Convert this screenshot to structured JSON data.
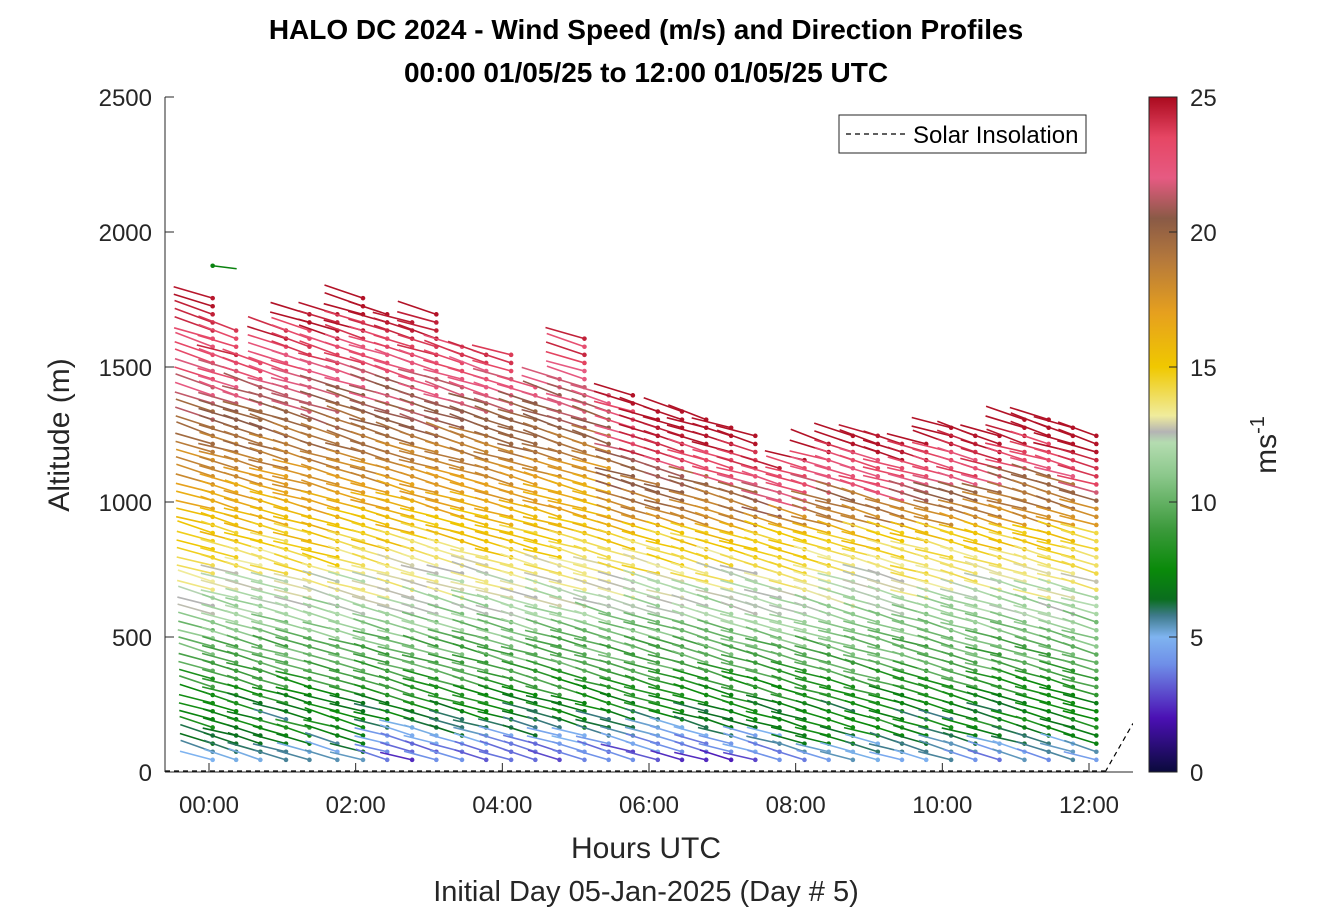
{
  "chart_data": {
    "type": "scatter",
    "title": "HALO DC 2024 - Wind Speed (m/s) and Direction Profiles",
    "subtitle": "00:00 01/05/25 to 12:00 01/05/25  UTC",
    "xlabel": "Hours UTC",
    "x_sublabel": "Initial Day 05-Jan-2025 (Day # 5)",
    "ylabel": "Altitude (m)",
    "xlim": [
      -0.6,
      12.6
    ],
    "ylim": [
      0,
      2500
    ],
    "x_ticks": [
      0,
      2,
      4,
      6,
      8,
      10,
      12
    ],
    "x_tick_labels": [
      "00:00",
      "02:00",
      "04:00",
      "06:00",
      "08:00",
      "10:00",
      "12:00"
    ],
    "y_ticks": [
      0,
      500,
      1000,
      1500,
      2000,
      2500
    ],
    "y_tick_labels": [
      "0",
      "500",
      "1000",
      "1500",
      "2000",
      "2500"
    ],
    "colorbar": {
      "label": "ms",
      "label_superscript": "-1",
      "range": [
        0,
        25
      ],
      "ticks": [
        0,
        5,
        10,
        15,
        20,
        25
      ],
      "tick_labels": [
        "0",
        "5",
        "10",
        "15",
        "20",
        "25"
      ],
      "colors": [
        {
          "v": 0,
          "c": "#0a0a3c"
        },
        {
          "v": 2,
          "c": "#4b10b4"
        },
        {
          "v": 4,
          "c": "#6f8fe8"
        },
        {
          "v": 5,
          "c": "#7fb4f0"
        },
        {
          "v": 5.8,
          "c": "#3e7a8a"
        },
        {
          "v": 6.4,
          "c": "#0a6e1e"
        },
        {
          "v": 7.5,
          "c": "#0a8a0a"
        },
        {
          "v": 9,
          "c": "#3c9a3c"
        },
        {
          "v": 11,
          "c": "#8cc88c"
        },
        {
          "v": 12.2,
          "c": "#b4dcb0"
        },
        {
          "v": 12.6,
          "c": "#b4b4b4"
        },
        {
          "v": 13.2,
          "c": "#f0ec9c"
        },
        {
          "v": 15,
          "c": "#f0c800"
        },
        {
          "v": 17,
          "c": "#e6a01e"
        },
        {
          "v": 19,
          "c": "#b4783c"
        },
        {
          "v": 20.5,
          "c": "#8a5a46"
        },
        {
          "v": 22,
          "c": "#e65a82"
        },
        {
          "v": 23.5,
          "c": "#e64664"
        },
        {
          "v": 25,
          "c": "#aa0a1e"
        }
      ]
    },
    "legend": {
      "entries": [
        "Solar Insolation"
      ],
      "position": "top-right"
    },
    "solar_insolation": {
      "x": [
        12.22,
        12.6
      ],
      "y": [
        0,
        180
      ]
    },
    "profiles": [
      {
        "t": 0.05,
        "top": 1780
      },
      {
        "t": 0.37,
        "top": 1660
      },
      {
        "t": 0.7,
        "top": 1540
      },
      {
        "t": 1.05,
        "top": 1660
      },
      {
        "t": 1.37,
        "top": 1700
      },
      {
        "t": 1.75,
        "top": 1710
      },
      {
        "t": 2.1,
        "top": 1780
      },
      {
        "t": 2.43,
        "top": 1700
      },
      {
        "t": 2.77,
        "top": 1670
      },
      {
        "t": 3.1,
        "top": 1700
      },
      {
        "t": 3.45,
        "top": 1580
      },
      {
        "t": 3.78,
        "top": 1570
      },
      {
        "t": 4.12,
        "top": 1570
      },
      {
        "t": 4.45,
        "top": 1450
      },
      {
        "t": 4.78,
        "top": 1460
      },
      {
        "t": 5.12,
        "top": 1610
      },
      {
        "t": 5.45,
        "top": 1420
      },
      {
        "t": 5.78,
        "top": 1400
      },
      {
        "t": 6.12,
        "top": 1360
      },
      {
        "t": 6.45,
        "top": 1340
      },
      {
        "t": 6.78,
        "top": 1330
      },
      {
        "t": 7.12,
        "top": 1280
      },
      {
        "t": 7.45,
        "top": 1260
      },
      {
        "t": 7.78,
        "top": 1150
      },
      {
        "t": 8.12,
        "top": 1180
      },
      {
        "t": 8.45,
        "top": 1240
      },
      {
        "t": 8.78,
        "top": 1260
      },
      {
        "t": 9.12,
        "top": 1250
      },
      {
        "t": 9.45,
        "top": 1220
      },
      {
        "t": 9.78,
        "top": 1220
      },
      {
        "t": 10.12,
        "top": 1280
      },
      {
        "t": 10.45,
        "top": 1260
      },
      {
        "t": 10.78,
        "top": 1260
      },
      {
        "t": 11.12,
        "top": 1330
      },
      {
        "t": 11.45,
        "top": 1330
      },
      {
        "t": 11.78,
        "top": 1290
      },
      {
        "t": 12.1,
        "top": 1250
      }
    ],
    "profile_altitude_step_m": 30,
    "profile_base_altitude_m": 45,
    "outliers": [
      {
        "t": 0.05,
        "alt": 1875,
        "speed": 7.2
      }
    ]
  }
}
